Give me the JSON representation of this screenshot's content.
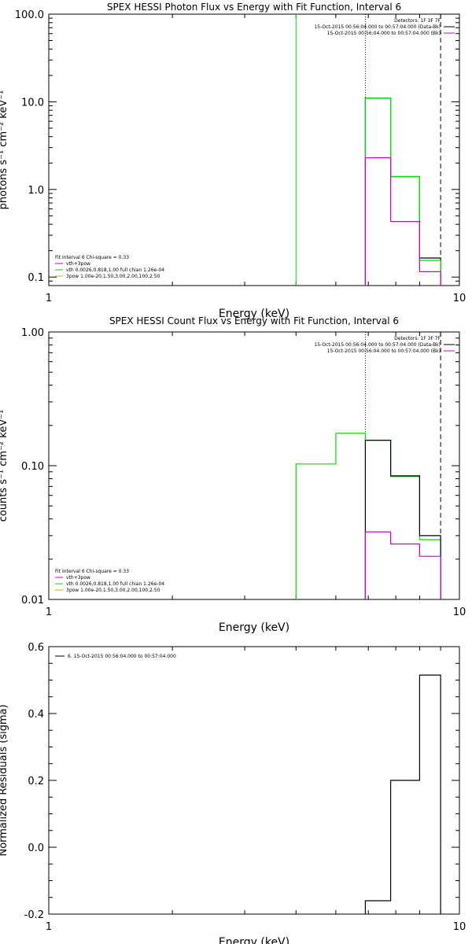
{
  "colors": {
    "black": "#000000",
    "green": "#00dd00",
    "magenta": "#cc00cc",
    "orange": "#ddaa00"
  },
  "chart_data": [
    {
      "type": "line",
      "title": "SPEX HESSI Photon Flux vs Energy with Fit Function, Interval 6",
      "xlabel": "Energy (keV)",
      "ylabel": "photons s⁻¹ cm⁻² keV⁻¹",
      "xscale": "log",
      "yscale": "log",
      "xlim": [
        1,
        10
      ],
      "ylim": [
        0.08,
        100
      ],
      "x_ticks": [
        "1",
        "10"
      ],
      "y_ticks": [
        {
          "v": 0.1,
          "label": "0.1"
        },
        {
          "v": 1,
          "label": "1.0"
        },
        {
          "v": 10,
          "label": "10.0"
        },
        {
          "v": 100,
          "label": "100.0"
        }
      ],
      "legend_top": [
        "Detectors: 1F 3F 7F",
        "15-Oct-2015 00:56:04.000 to 00:57:04.000 (Data-Bk)",
        "15-Oct-2015 00:56:04.000 to 00:57:04.000 (Bk)"
      ],
      "legend_bottom": [
        "Fit Interval 6   Chi-square = 0.33",
        "vth+3pow",
        "vth 0.0026,0.818,1.00  full chian 1.26e-04",
        "3pow 1.00e-20,1.50,3.00,2.00,100,2.50"
      ],
      "vlines": [
        {
          "x": 4.0,
          "style": "solid",
          "series": "vth"
        },
        {
          "x": 5.9,
          "style": "dotted",
          "series": "data"
        },
        {
          "x": 9.0,
          "style": "dashed",
          "series": "data"
        }
      ],
      "series": [
        {
          "name": "Data-Bk",
          "color": "black",
          "edges": [
            5.9,
            6.8,
            8.0,
            9.0
          ],
          "values": [
            11.0,
            1.4,
            0.165
          ]
        },
        {
          "name": "vth+3pow",
          "color": "green",
          "edges": [
            5.9,
            6.8,
            8.0,
            9.0
          ],
          "values": [
            11.0,
            1.4,
            0.155
          ]
        },
        {
          "name": "Bk",
          "color": "magenta",
          "edges": [
            5.9,
            6.8,
            8.0,
            9.0
          ],
          "values": [
            2.3,
            0.43,
            0.115
          ]
        }
      ]
    },
    {
      "type": "line",
      "title": "SPEX HESSI Count Flux vs Energy with Fit Function, Interval 6",
      "xlabel": "Energy (keV)",
      "ylabel": "counts s⁻¹ cm⁻² keV⁻¹",
      "xscale": "log",
      "yscale": "log",
      "xlim": [
        1,
        10
      ],
      "ylim": [
        0.01,
        1
      ],
      "x_ticks": [
        "1",
        "10"
      ],
      "y_ticks": [
        {
          "v": 0.01,
          "label": "0.01"
        },
        {
          "v": 0.1,
          "label": "0.10"
        },
        {
          "v": 1,
          "label": "1.00"
        }
      ],
      "legend_top": [
        "Detectors: 1F 3F 7F",
        "15-Oct-2015 00:56:04.000 to 00:57:04.000 (Data-Bk)",
        "15-Oct-2015 00:56:04.000 to 00:57:04.000 (Bk)"
      ],
      "legend_bottom": [
        "Fit Interval 6   Chi-square = 0.33",
        "vth+3pow",
        "vth 0.0026,0.818,1.00  full chian 1.26e-04",
        "3pow 1.00e-20,1.50,3.00,2.00,100,2.50"
      ],
      "vlines": [
        {
          "x": 5.9,
          "style": "dotted",
          "series": "data"
        },
        {
          "x": 9.0,
          "style": "dashed",
          "series": "data"
        }
      ],
      "series": [
        {
          "name": "vth+3pow",
          "color": "green",
          "edges": [
            4.0,
            5.0,
            5.9,
            6.8,
            8.0,
            9.0
          ],
          "values": [
            0.103,
            0.175,
            0.155,
            0.083,
            0.028
          ]
        },
        {
          "name": "Data-Bk",
          "color": "black",
          "edges": [
            5.9,
            6.8,
            8.0,
            9.0
          ],
          "values": [
            0.155,
            0.084,
            0.03
          ]
        },
        {
          "name": "Bk",
          "color": "magenta",
          "edges": [
            5.9,
            6.8,
            8.0,
            9.0
          ],
          "values": [
            0.032,
            0.026,
            0.021
          ]
        }
      ]
    },
    {
      "type": "line",
      "title": "",
      "xlabel": "Energy (keV)",
      "ylabel": "Normalized Residuals (sigma)",
      "xscale": "log",
      "yscale": "linear",
      "xlim": [
        1,
        10
      ],
      "ylim": [
        -0.2,
        0.6
      ],
      "x_ticks": [
        "1",
        "10"
      ],
      "y_ticks": [
        {
          "v": -0.2,
          "label": "-0.2"
        },
        {
          "v": 0.0,
          "label": "0.0"
        },
        {
          "v": 0.2,
          "label": "0.2"
        },
        {
          "v": 0.4,
          "label": "0.4"
        },
        {
          "v": 0.6,
          "label": "0.6"
        }
      ],
      "legend_top": [],
      "legend_bottom": [],
      "legend_left": "6. 15-Oct-2015 00:56:04.000 to 00:57:04.000",
      "vlines": [],
      "series": [
        {
          "name": "6. 15-Oct-2015 00:56:04.000 to 00:57:04.000",
          "color": "black",
          "edges": [
            5.9,
            6.8,
            8.0,
            9.0
          ],
          "values": [
            -0.16,
            0.2,
            0.515
          ]
        }
      ]
    }
  ]
}
